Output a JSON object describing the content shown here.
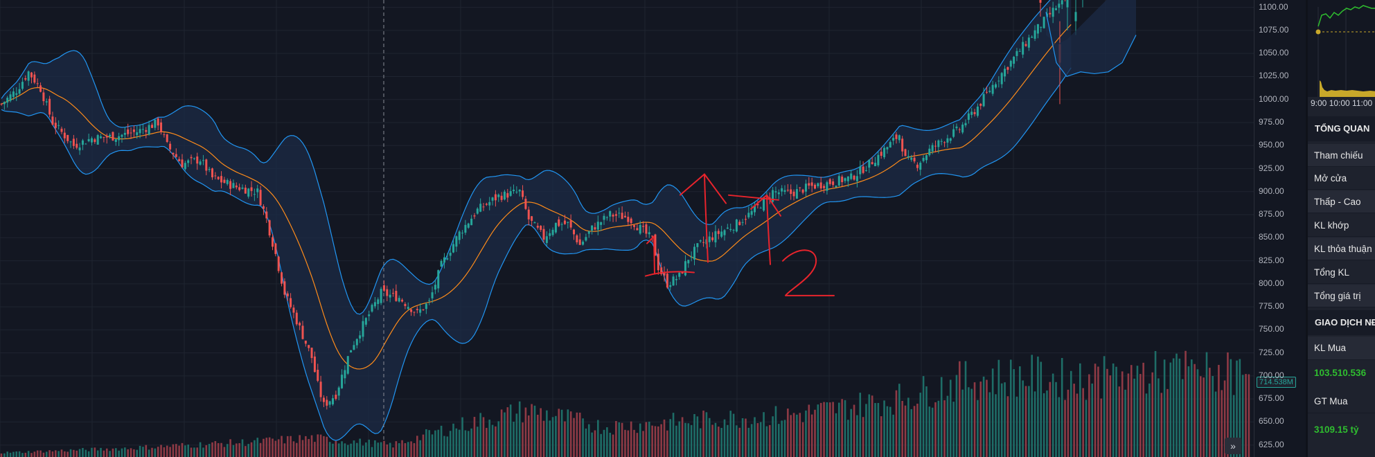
{
  "chart_data": {
    "type": "candlestick",
    "overlays": [
      "bollinger-bands",
      "moving-average"
    ],
    "price_axis": {
      "ticks": [
        "1100.00",
        "1075.00",
        "1050.00",
        "1025.00",
        "1000.00",
        "975.00",
        "950.00",
        "925.00",
        "900.00",
        "875.00",
        "850.00",
        "825.00",
        "800.00",
        "775.00",
        "750.00",
        "725.00",
        "700.00",
        "675.00",
        "650.00",
        "625.00"
      ],
      "ylim": [
        612,
        1108
      ]
    },
    "volume_label": "714.538M",
    "colors": {
      "up": "#26a69a",
      "down": "#ef5350",
      "band": "#2196f3",
      "ma": "#ff8c1a",
      "band_fill": "#1c2b45",
      "annotation": "#e8242c",
      "grid": "#1f2430"
    },
    "close_anchors": [
      [
        0,
        995
      ],
      [
        5,
        1010
      ],
      [
        9,
        1030
      ],
      [
        13,
        1012
      ],
      [
        17,
        975
      ],
      [
        24,
        950
      ],
      [
        30,
        958
      ],
      [
        38,
        960
      ],
      [
        45,
        965
      ],
      [
        52,
        975
      ],
      [
        55,
        950
      ],
      [
        60,
        930
      ],
      [
        66,
        935
      ],
      [
        70,
        915
      ],
      [
        78,
        905
      ],
      [
        85,
        900
      ],
      [
        88,
        870
      ],
      [
        91,
        832
      ],
      [
        94,
        790
      ],
      [
        98,
        760
      ],
      [
        103,
        720
      ],
      [
        105,
        690
      ],
      [
        107,
        668
      ],
      [
        111,
        680
      ],
      [
        113,
        700
      ],
      [
        116,
        730
      ],
      [
        120,
        755
      ],
      [
        126,
        790
      ],
      [
        132,
        785
      ],
      [
        138,
        768
      ],
      [
        142,
        780
      ],
      [
        146,
        820
      ],
      [
        152,
        855
      ],
      [
        158,
        880
      ],
      [
        165,
        895
      ],
      [
        172,
        900
      ],
      [
        175,
        870
      ],
      [
        180,
        850
      ],
      [
        184,
        865
      ],
      [
        188,
        865
      ],
      [
        192,
        842
      ],
      [
        196,
        860
      ],
      [
        202,
        875
      ],
      [
        208,
        872
      ],
      [
        212,
        860
      ],
      [
        216,
        848
      ],
      [
        218,
        818
      ],
      [
        221,
        800
      ],
      [
        225,
        808
      ],
      [
        228,
        828
      ],
      [
        232,
        843
      ],
      [
        238,
        855
      ],
      [
        244,
        865
      ],
      [
        250,
        880
      ],
      [
        256,
        900
      ],
      [
        262,
        898
      ],
      [
        268,
        905
      ],
      [
        275,
        910
      ],
      [
        282,
        915
      ],
      [
        288,
        930
      ],
      [
        292,
        942
      ],
      [
        296,
        955
      ],
      [
        298,
        962
      ],
      [
        300,
        935
      ],
      [
        304,
        930
      ],
      [
        308,
        945
      ],
      [
        312,
        955
      ],
      [
        318,
        968
      ],
      [
        324,
        992
      ],
      [
        330,
        1020
      ],
      [
        336,
        1045
      ],
      [
        342,
        1070
      ],
      [
        346,
        1085
      ],
      [
        350,
        1100
      ],
      [
        355,
        1110
      ]
    ],
    "gap_candles": [
      {
        "o": 1120,
        "h": 1125,
        "l": 1090,
        "c": 1105
      },
      {
        "o": 1060,
        "h": 1085,
        "l": 995,
        "c": 1040
      },
      {
        "o": 1100,
        "h": 1120,
        "l": 1075,
        "c": 1110
      },
      {
        "o": 1085,
        "h": 1130,
        "l": 1070,
        "c": 1095
      },
      {
        "o": 1110,
        "h": 1130,
        "l": 1100,
        "c": 1125
      }
    ],
    "volume_profile": [
      [
        0,
        0.05
      ],
      [
        40,
        0.1
      ],
      [
        80,
        0.17
      ],
      [
        103,
        0.22
      ],
      [
        130,
        0.14
      ],
      [
        150,
        0.35
      ],
      [
        175,
        0.55
      ],
      [
        200,
        0.35
      ],
      [
        220,
        0.4
      ],
      [
        240,
        0.45
      ],
      [
        260,
        0.48
      ],
      [
        280,
        0.58
      ],
      [
        300,
        0.7
      ],
      [
        320,
        0.9
      ],
      [
        340,
        0.95
      ],
      [
        356,
        0.9
      ],
      [
        390,
        1.0
      ],
      [
        420,
        0.95
      ]
    ],
    "annotations": [
      {
        "label": "1",
        "x": 952,
        "y": 940
      },
      {
        "label": "2",
        "x": 1032,
        "y": 915
      }
    ]
  },
  "sidebar": {
    "mini_times": "9:00  10:00 11:00",
    "overview": {
      "title": "TỔNG QUAN",
      "rows": [
        "Tham chiếu",
        "Mở cửa",
        "Thấp - Cao",
        "KL khớp",
        "KL thỏa thuận",
        "Tổng KL",
        "Tổng giá trị"
      ]
    },
    "trade": {
      "title": "GIAO DỊCH NĐTNN",
      "kl_mua_label": "KL Mua",
      "kl_mua_value": "103.510.536",
      "gt_mua_label": "GT Mua",
      "gt_mua_value": "3109.15 tỷ"
    }
  }
}
